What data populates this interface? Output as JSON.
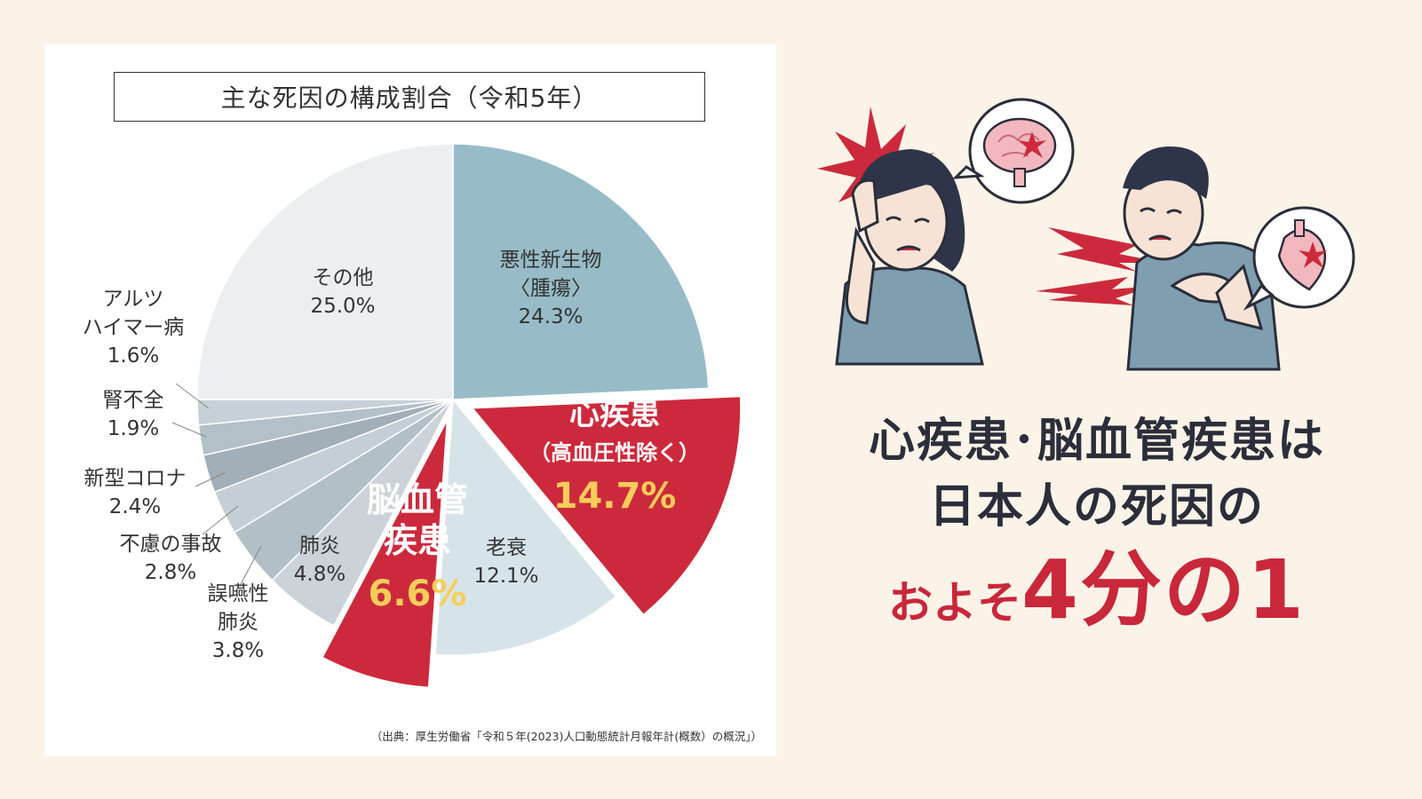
{
  "chart_title": "主な死因の構成割合（令和5年）",
  "source": "（出典：厚生労働省「令和５年(2023)人口動態統計月報年計(概数）の概況」）",
  "headline": {
    "line1": "心疾患･脳血管疾患は",
    "line2": "日本人の死因の",
    "line3_small": "およそ",
    "line3_big": "4分の1"
  },
  "colors": {
    "highlight": "#cc2a3c",
    "highlight_value": "#f7cd5a",
    "background": "#fbf3e8"
  },
  "chart_data": {
    "type": "pie",
    "title": "主な死因の構成割合（令和5年）",
    "slices": [
      {
        "label": [
          "悪性新生物",
          "〈腫瘍〉"
        ],
        "value": 24.3,
        "value_text": "24.3%",
        "color": "#97bcc8",
        "highlight": false
      },
      {
        "label": [
          "心疾患",
          "（高血圧性除く）"
        ],
        "value": 14.7,
        "value_text": "14.7%",
        "color": "#cc2a3c",
        "highlight": true
      },
      {
        "label": [
          "老衰"
        ],
        "value": 12.1,
        "value_text": "12.1%",
        "color": "#d6e4e9",
        "highlight": false
      },
      {
        "label": [
          "脳血管",
          "疾患"
        ],
        "value": 6.6,
        "value_text": "6.6%",
        "color": "#cc2a3c",
        "highlight": true
      },
      {
        "label": [
          "肺炎"
        ],
        "value": 4.8,
        "value_text": "4.8%",
        "color": "#cbd3d9",
        "highlight": false
      },
      {
        "label": [
          "誤嚥性",
          "肺炎"
        ],
        "value": 3.8,
        "value_text": "3.8%",
        "color": "#b3bfc7",
        "highlight": false
      },
      {
        "label": [
          "不慮の事故"
        ],
        "value": 2.8,
        "value_text": "2.8%",
        "color": "#c4ced5",
        "highlight": false
      },
      {
        "label": [
          "新型コロナ"
        ],
        "value": 2.4,
        "value_text": "2.4%",
        "color": "#a2afb9",
        "highlight": false
      },
      {
        "label": [
          "腎不全"
        ],
        "value": 1.9,
        "value_text": "1.9%",
        "color": "#b4c0c8",
        "highlight": false
      },
      {
        "label": [
          "アルツ",
          "ハイマー病"
        ],
        "value": 1.6,
        "value_text": "1.6%",
        "color": "#c6d0d6",
        "highlight": false
      },
      {
        "label": [
          "その他"
        ],
        "value": 25.0,
        "value_text": "25.0%",
        "color": "#eceff2",
        "highlight": false
      }
    ]
  }
}
